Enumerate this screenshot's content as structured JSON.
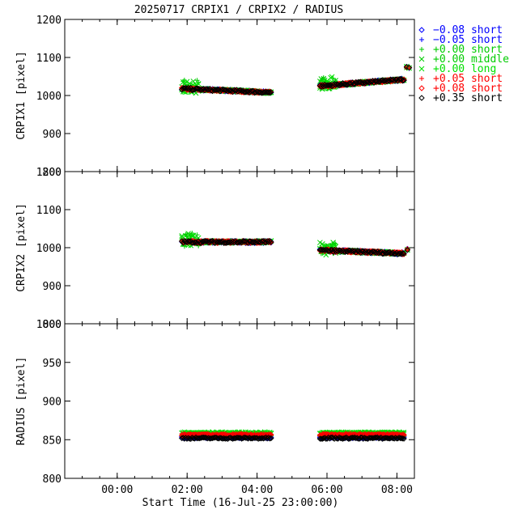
{
  "chart_data": {
    "type": "scatter",
    "title": "20250717 CRPIX1 / CRPIX2 / RADIUS",
    "xlabel": "Start Time (16-Jul-25 23:00:00)",
    "x_range_hours": [
      -0.5,
      9.5
    ],
    "x_ticks": [
      {
        "h": 1,
        "label": "00:00"
      },
      {
        "h": 3,
        "label": "02:00"
      },
      {
        "h": 5,
        "label": "04:00"
      },
      {
        "h": 7,
        "label": "06:00"
      },
      {
        "h": 9,
        "label": "08:00"
      }
    ],
    "panels": [
      {
        "ylabel": "CRPIX1 [pixel]",
        "ylim": [
          800,
          1200
        ],
        "yticks": [
          800,
          900,
          1000,
          1100,
          1200
        ],
        "segments": [
          {
            "x_start": 2.85,
            "x_end": 5.4,
            "y_start": 1018,
            "y_end": 1008
          },
          {
            "x_start": 6.8,
            "x_end": 9.2,
            "y_start": 1025,
            "y_end": 1042
          }
        ],
        "extra_points": [
          {
            "x": 9.28,
            "y": 1075
          },
          {
            "x": 9.35,
            "y": 1073
          }
        ]
      },
      {
        "ylabel": "CRPIX2 [pixel]",
        "ylim": [
          800,
          1200
        ],
        "yticks": [
          800,
          900,
          1000,
          1100,
          1200
        ],
        "segments": [
          {
            "x_start": 2.85,
            "x_end": 5.4,
            "y_start": 1015,
            "y_end": 1015
          },
          {
            "x_start": 6.8,
            "x_end": 9.2,
            "y_start": 993,
            "y_end": 985
          }
        ],
        "extra_points": [
          {
            "x": 9.3,
            "y": 995
          }
        ]
      },
      {
        "ylabel": "RADIUS [pixel]",
        "ylim": [
          800,
          1000
        ],
        "yticks": [
          800,
          850,
          900,
          950,
          1000
        ],
        "segments": [
          {
            "x_start": 2.85,
            "x_end": 5.4,
            "y_start": 855,
            "y_end": 855
          },
          {
            "x_start": 6.8,
            "x_end": 9.2,
            "y_start": 855,
            "y_end": 855
          }
        ],
        "series_offsets": [
          -2,
          -1,
          0,
          3,
          4,
          2,
          1,
          -3
        ]
      }
    ],
    "series": [
      {
        "name": "−0.08 short",
        "marker": "diamond",
        "color": "#0000ff"
      },
      {
        "name": "−0.05 short",
        "marker": "plus",
        "color": "#0000ff"
      },
      {
        "name": "+0.00 short",
        "marker": "plus",
        "color": "#00cc00"
      },
      {
        "name": "+0.00 middle",
        "marker": "cross",
        "color": "#00cc00"
      },
      {
        "name": "+0.00 long",
        "marker": "cross",
        "color": "#00e000"
      },
      {
        "name": "+0.05 short",
        "marker": "plus",
        "color": "#ff0000"
      },
      {
        "name": "+0.08 short",
        "marker": "diamond",
        "color": "#ff0000"
      },
      {
        "name": "+0.35 short",
        "marker": "diamond",
        "color": "#000000"
      }
    ]
  }
}
